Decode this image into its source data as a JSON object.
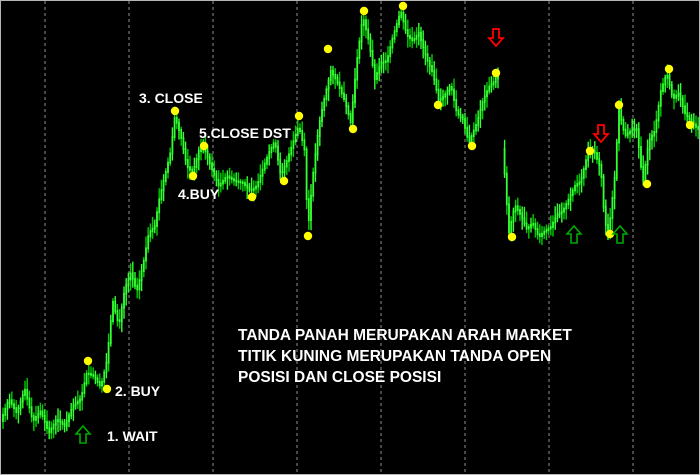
{
  "colors": {
    "background": "#000000",
    "candle": "#00cc00",
    "candle_bright": "#33ff33",
    "grid": "#c0c0c0",
    "signal_dot": "#ffff00",
    "arrow_up": "#00aa00",
    "arrow_down": "#ff0000",
    "text": "#ffffff"
  },
  "labels": {
    "wait": "1. WAIT",
    "buy_1": "2. BUY",
    "close_1": "3. CLOSE",
    "buy_2": "4.BUY",
    "close_2": "5.CLOSE DST"
  },
  "note": {
    "line1": "TANDA PANAH MERUPAKAN ARAH MARKET",
    "line2": "TITIK KUNING MERUPAKAN TANDA OPEN",
    "line3": "POSISI DAN CLOSE POSISI"
  },
  "markers": {
    "up_arrow_icon": "up-arrow-icon",
    "down_arrow_icon": "down-arrow-icon",
    "signal_dot_icon": "yellow-dot-icon"
  }
}
